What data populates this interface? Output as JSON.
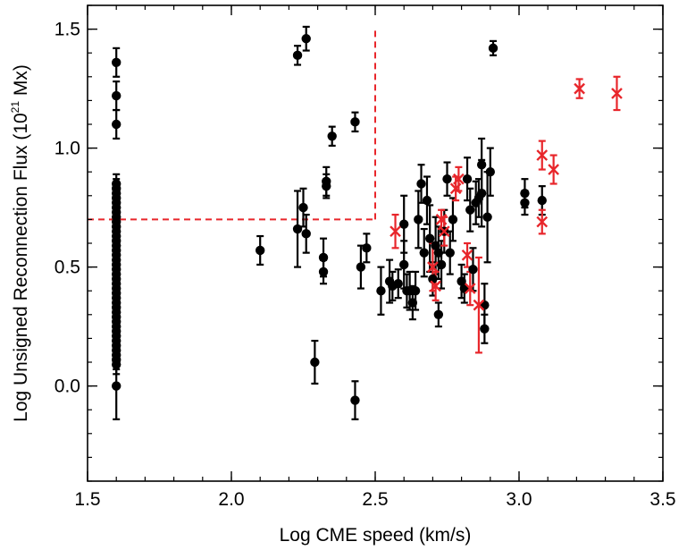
{
  "chart_data": {
    "type": "scatter",
    "xlabel": "Log CME speed (km/s)",
    "ylabel": {
      "prefix": "Log Unsigned Reconnection Flux (10",
      "exponent": "21",
      "suffix": " Mx)"
    },
    "xlim": [
      1.5,
      3.5
    ],
    "ylim": [
      -0.4,
      1.6
    ],
    "xticks": [
      "1.5",
      "2.0",
      "2.5",
      "3.0",
      "3.5"
    ],
    "yticks": [
      "0.0",
      "0.5",
      "1.0",
      "1.5"
    ],
    "threshold_lines": {
      "color": "#e8262b",
      "horizontal": {
        "y": 0.7,
        "x_from": 1.5,
        "x_to": 2.5
      },
      "vertical": {
        "x": 2.5,
        "y_from": 0.7,
        "y_to": 1.5
      }
    },
    "series": [
      {
        "marker": "circle",
        "color": "#000000",
        "points": [
          [
            1.6,
            1.36,
            0.06
          ],
          [
            1.6,
            1.22,
            0.06
          ],
          [
            1.6,
            1.1,
            0.06
          ],
          [
            1.6,
            0.85,
            0.04
          ],
          [
            1.6,
            0.83,
            0.04
          ],
          [
            1.6,
            0.81,
            0.04
          ],
          [
            1.6,
            0.79,
            0.04
          ],
          [
            1.6,
            0.77,
            0.04
          ],
          [
            1.6,
            0.75,
            0.04
          ],
          [
            1.6,
            0.73,
            0.04
          ],
          [
            1.6,
            0.71,
            0.04
          ],
          [
            1.6,
            0.69,
            0.04
          ],
          [
            1.6,
            0.67,
            0.04
          ],
          [
            1.6,
            0.65,
            0.04
          ],
          [
            1.6,
            0.63,
            0.04
          ],
          [
            1.6,
            0.61,
            0.04
          ],
          [
            1.6,
            0.59,
            0.04
          ],
          [
            1.6,
            0.57,
            0.04
          ],
          [
            1.6,
            0.55,
            0.04
          ],
          [
            1.6,
            0.53,
            0.04
          ],
          [
            1.6,
            0.51,
            0.04
          ],
          [
            1.6,
            0.49,
            0.04
          ],
          [
            1.6,
            0.47,
            0.04
          ],
          [
            1.6,
            0.45,
            0.04
          ],
          [
            1.6,
            0.43,
            0.04
          ],
          [
            1.6,
            0.41,
            0.04
          ],
          [
            1.6,
            0.39,
            0.04
          ],
          [
            1.6,
            0.37,
            0.04
          ],
          [
            1.6,
            0.35,
            0.04
          ],
          [
            1.6,
            0.33,
            0.04
          ],
          [
            1.6,
            0.31,
            0.04
          ],
          [
            1.6,
            0.29,
            0.04
          ],
          [
            1.6,
            0.27,
            0.04
          ],
          [
            1.6,
            0.25,
            0.04
          ],
          [
            1.6,
            0.23,
            0.04
          ],
          [
            1.6,
            0.21,
            0.04
          ],
          [
            1.6,
            0.19,
            0.04
          ],
          [
            1.6,
            0.17,
            0.04
          ],
          [
            1.6,
            0.15,
            0.04
          ],
          [
            1.6,
            0.13,
            0.04
          ],
          [
            1.6,
            0.11,
            0.04
          ],
          [
            1.6,
            0.09,
            0.04
          ],
          [
            1.6,
            0.0,
            0.14
          ],
          [
            2.1,
            0.57,
            0.06
          ],
          [
            2.23,
            1.39,
            0.04
          ],
          [
            2.26,
            1.46,
            0.05
          ],
          [
            2.23,
            0.66,
            0.16
          ],
          [
            2.25,
            0.75,
            0.08
          ],
          [
            2.26,
            0.64,
            0.08
          ],
          [
            2.29,
            0.1,
            0.09
          ],
          [
            2.32,
            0.54,
            0.08
          ],
          [
            2.32,
            0.48,
            0.05
          ],
          [
            2.33,
            0.86,
            0.06
          ],
          [
            2.33,
            0.84,
            0.05
          ],
          [
            2.35,
            1.05,
            0.04
          ],
          [
            2.43,
            1.11,
            0.04
          ],
          [
            2.43,
            -0.06,
            0.08
          ],
          [
            2.45,
            0.5,
            0.09
          ],
          [
            2.47,
            0.58,
            0.06
          ],
          [
            2.52,
            0.4,
            0.1
          ],
          [
            2.55,
            0.44,
            0.09
          ],
          [
            2.56,
            0.42,
            0.06
          ],
          [
            2.58,
            0.43,
            0.06
          ],
          [
            2.6,
            0.68,
            0.12
          ],
          [
            2.6,
            0.51,
            0.1
          ],
          [
            2.61,
            0.4,
            0.07
          ],
          [
            2.62,
            0.4,
            0.08
          ],
          [
            2.63,
            0.35,
            0.07
          ],
          [
            2.64,
            0.4,
            0.08
          ],
          [
            2.65,
            0.7,
            0.12
          ],
          [
            2.66,
            0.85,
            0.08
          ],
          [
            2.67,
            0.56,
            0.1
          ],
          [
            2.68,
            0.78,
            0.1
          ],
          [
            2.69,
            0.62,
            0.14
          ],
          [
            2.7,
            0.45,
            0.07
          ],
          [
            2.71,
            0.59,
            0.12
          ],
          [
            2.72,
            0.3,
            0.05
          ],
          [
            2.72,
            0.56,
            0.11
          ],
          [
            2.73,
            0.51,
            0.1
          ],
          [
            2.74,
            0.65,
            0.09
          ],
          [
            2.75,
            0.87,
            0.07
          ],
          [
            2.76,
            0.56,
            0.09
          ],
          [
            2.77,
            0.7,
            0.09
          ],
          [
            2.8,
            0.44,
            0.07
          ],
          [
            2.81,
            0.41,
            0.06
          ],
          [
            2.82,
            0.87,
            0.09
          ],
          [
            2.83,
            0.74,
            0.09
          ],
          [
            2.84,
            0.49,
            0.09
          ],
          [
            2.85,
            0.77,
            0.09
          ],
          [
            2.86,
            0.79,
            0.08
          ],
          [
            2.87,
            0.81,
            0.14
          ],
          [
            2.87,
            0.93,
            0.11
          ],
          [
            2.88,
            0.24,
            0.06
          ],
          [
            2.88,
            0.34,
            0.09
          ],
          [
            2.89,
            0.71,
            0.19
          ],
          [
            2.9,
            0.9,
            0.1
          ],
          [
            2.91,
            1.42,
            0.03
          ],
          [
            3.02,
            0.81,
            0.06
          ],
          [
            3.02,
            0.77,
            0.05
          ],
          [
            3.08,
            0.78,
            0.06
          ]
        ]
      },
      {
        "marker": "x",
        "color": "#e8262b",
        "points": [
          [
            2.57,
            0.65,
            0.07
          ],
          [
            2.7,
            0.5,
            0.1
          ],
          [
            2.71,
            0.42,
            0.06
          ],
          [
            2.73,
            0.7,
            0.04
          ],
          [
            2.74,
            0.65,
            0.06
          ],
          [
            2.78,
            0.83,
            0.05
          ],
          [
            2.79,
            0.87,
            0.05
          ],
          [
            2.82,
            0.55,
            0.05
          ],
          [
            2.83,
            0.41,
            0.07
          ],
          [
            2.86,
            0.34,
            0.2
          ],
          [
            3.08,
            0.97,
            0.06
          ],
          [
            3.08,
            0.69,
            0.05
          ],
          [
            3.12,
            0.91,
            0.06
          ],
          [
            3.21,
            1.25,
            0.04
          ],
          [
            3.34,
            1.23,
            0.07
          ]
        ]
      }
    ]
  }
}
